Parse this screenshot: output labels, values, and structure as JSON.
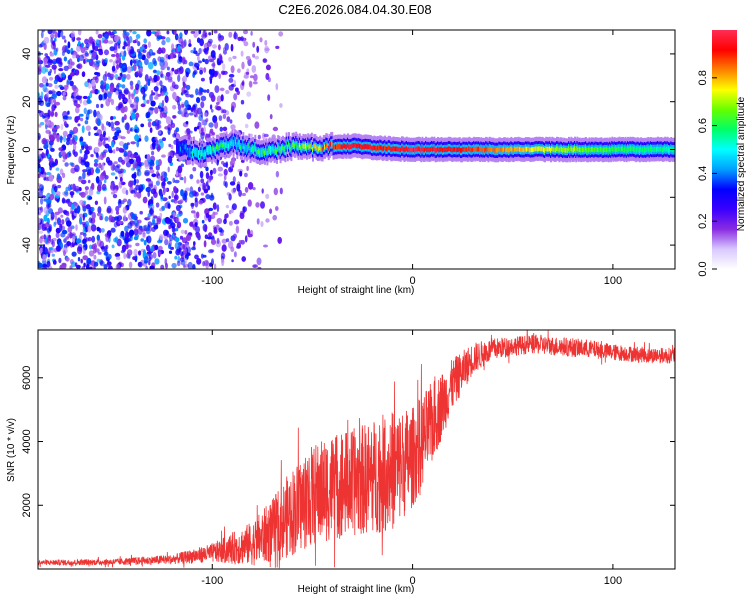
{
  "figure": {
    "title": "C2E6.2026.084.04.30.E08"
  },
  "chart_data": [
    {
      "type": "heatmap",
      "id": "spectrogram",
      "xlabel": "Height of straight line (km)",
      "ylabel": "Frequency (Hz)",
      "xlim": [
        -187,
        131
      ],
      "ylim": [
        -50,
        50
      ],
      "xticks": [
        -100,
        0,
        100
      ],
      "yticks": [
        -40,
        -20,
        0,
        20,
        40
      ],
      "grid": false,
      "colorbar": {
        "label": "Normalized spectral amplitude",
        "range": [
          0,
          1
        ],
        "ticks": [
          "0.0",
          "0.2",
          "0.4",
          "0.6",
          "0.8"
        ],
        "colormap": [
          "#ffffff",
          "#d8c8ff",
          "#8a2be2",
          "#3a00ff",
          "#0000ff",
          "#00a0ff",
          "#00ffff",
          "#00ff66",
          "#66ff00",
          "#ffff00",
          "#ff8000",
          "#ff0000",
          "#ff2d55"
        ]
      },
      "noise_region_km": [
        -187,
        -88
      ],
      "signal_band": [
        {
          "x": -118,
          "center_hz": 1.0,
          "peak": 0.3
        },
        {
          "x": -105,
          "center_hz": -1.5,
          "peak": 0.55
        },
        {
          "x": -90,
          "center_hz": 2.5,
          "peak": 0.5
        },
        {
          "x": -75,
          "center_hz": -1.0,
          "peak": 0.55
        },
        {
          "x": -60,
          "center_hz": 1.5,
          "peak": 0.6
        },
        {
          "x": -45,
          "center_hz": 1.0,
          "peak": 0.85
        },
        {
          "x": -30,
          "center_hz": 1.5,
          "peak": 0.95
        },
        {
          "x": -15,
          "center_hz": 0.5,
          "peak": 0.9
        },
        {
          "x": 0,
          "center_hz": 0.0,
          "peak": 0.98
        },
        {
          "x": 25,
          "center_hz": 0.0,
          "peak": 0.9
        },
        {
          "x": 50,
          "center_hz": 0.0,
          "peak": 0.8
        },
        {
          "x": 75,
          "center_hz": 0.0,
          "peak": 0.7
        },
        {
          "x": 100,
          "center_hz": 0.0,
          "peak": 0.6
        },
        {
          "x": 131,
          "center_hz": 0.0,
          "peak": 0.55
        }
      ]
    },
    {
      "type": "line",
      "id": "snr",
      "xlabel": "Height of straight line (km)",
      "ylabel": "SNR (10 * v/v)",
      "xlim": [
        -187,
        131
      ],
      "ylim": [
        0,
        7500
      ],
      "xticks": [
        -100,
        0,
        100
      ],
      "yticks": [
        2000,
        4000,
        6000
      ],
      "grid": false,
      "series": [
        {
          "name": "SNR",
          "color": "#ee3333",
          "x": [
            -187,
            -150,
            -120,
            -100,
            -80,
            -70,
            -60,
            -50,
            -40,
            -30,
            -20,
            -10,
            0,
            10,
            20,
            30,
            40,
            50,
            60,
            70,
            80,
            90,
            100,
            110,
            120,
            131
          ],
          "y": [
            200,
            220,
            300,
            500,
            800,
            1200,
            1800,
            2300,
            2600,
            2700,
            2900,
            3100,
            3500,
            4600,
            5800,
            6600,
            6900,
            7000,
            7050,
            7000,
            6950,
            6900,
            6800,
            6750,
            6700,
            6700
          ],
          "amp": [
            80,
            100,
            150,
            300,
            700,
            1000,
            1400,
            1600,
            1700,
            1700,
            1800,
            1900,
            1600,
            1300,
            800,
            500,
            350,
            300,
            300,
            300,
            300,
            280,
            260,
            250,
            250,
            250
          ]
        }
      ]
    }
  ]
}
